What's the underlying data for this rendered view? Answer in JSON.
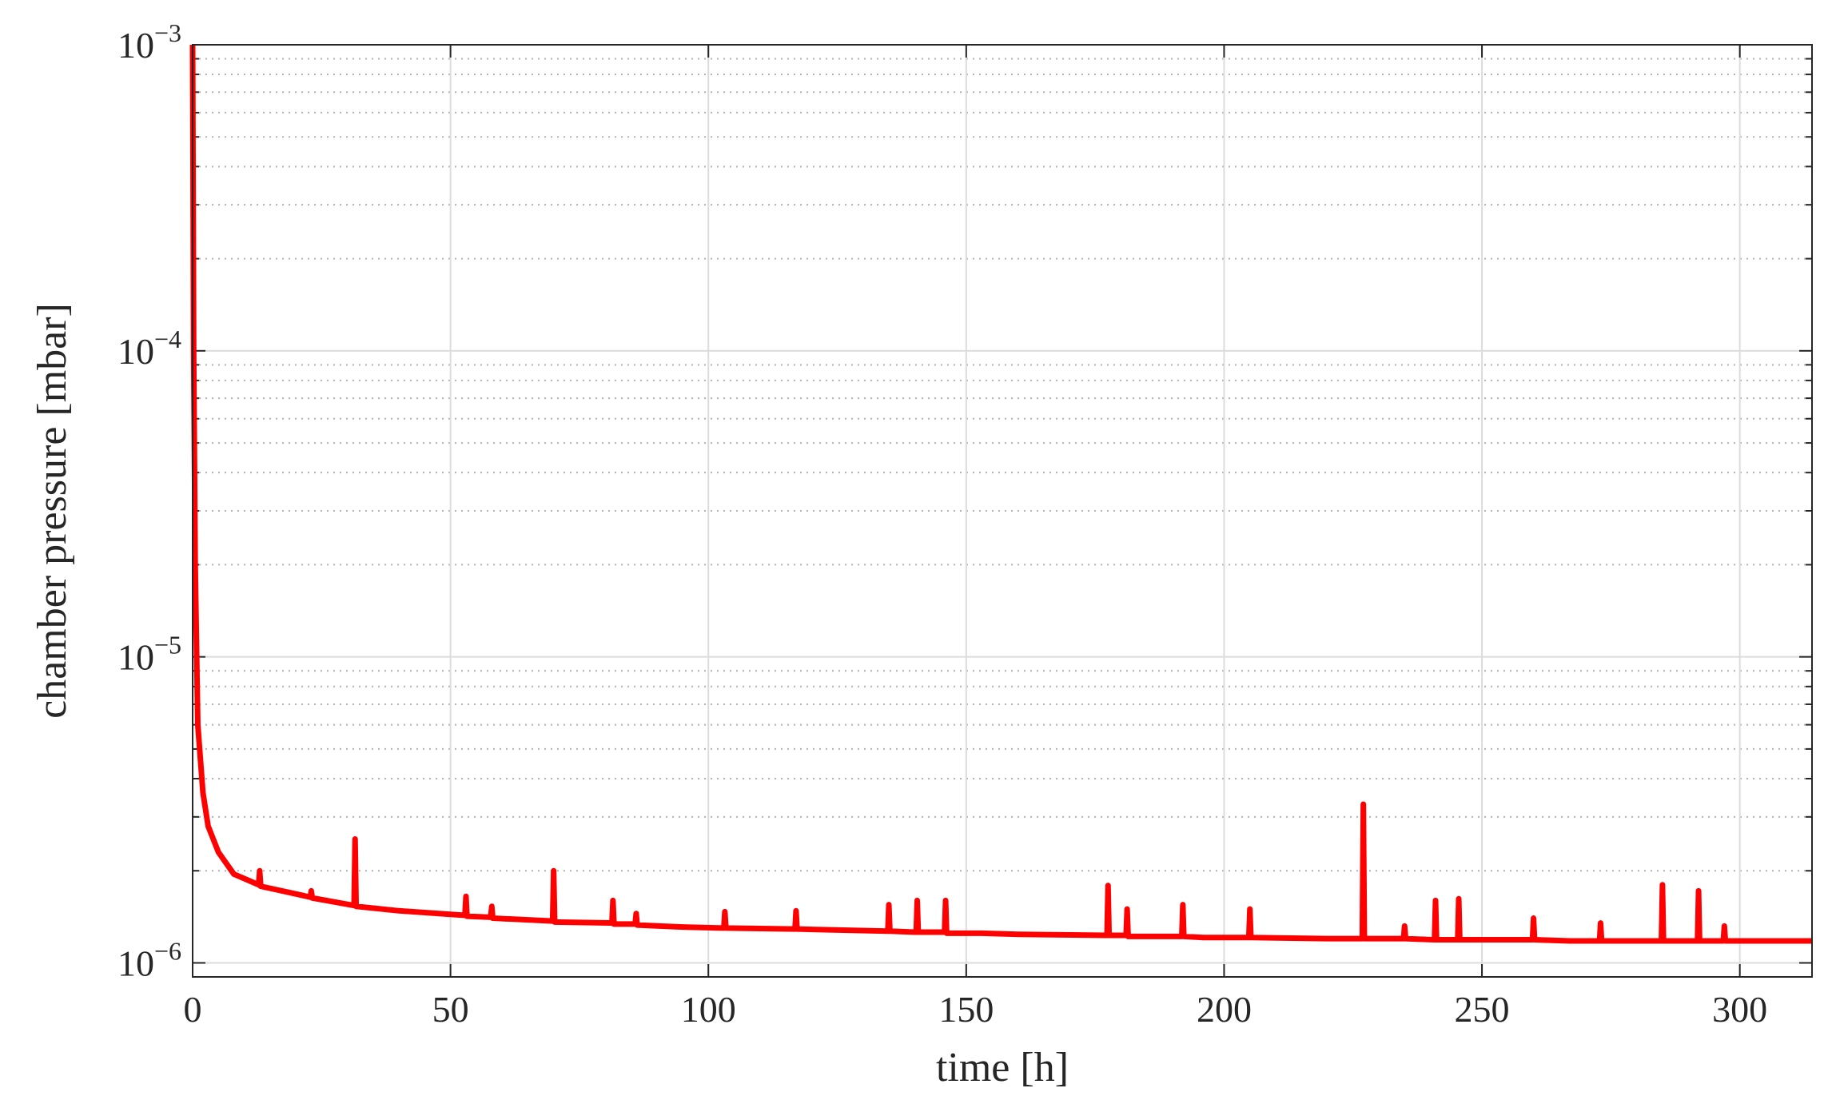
{
  "chart_data": {
    "type": "line",
    "x_label": "time [h]",
    "y_label": "chamber pressure [mbar]",
    "color": "#ff0000",
    "ylog": true,
    "grid": true,
    "minor_grid": true,
    "xlim": [
      0,
      314
    ],
    "ylim": [
      9e-07,
      0.001
    ],
    "xticks": [
      0,
      50,
      100,
      150,
      200,
      250,
      300
    ],
    "yticks": [
      {
        "value": 1e-06,
        "label": "10−6"
      },
      {
        "value": 1e-05,
        "label": "10−5"
      },
      {
        "value": 0.0001,
        "label": "10−4"
      },
      {
        "value": 0.001,
        "label": "10−3"
      }
    ],
    "x": [
      0,
      0.2,
      0.5,
      1,
      2,
      3,
      5,
      8,
      12.8,
      13,
      13.2,
      20,
      22.8,
      23,
      23.2,
      31.3,
      31.5,
      31.7,
      40,
      52.8,
      53,
      53.2,
      57.8,
      58,
      58.2,
      69.8,
      70,
      70.2,
      81.3,
      81.5,
      81.7,
      85.8,
      86,
      86.2,
      95,
      103,
      103.2,
      103.4,
      116.8,
      117,
      117.2,
      134.8,
      135,
      135.2,
      140.3,
      140.5,
      140.7,
      145.8,
      146,
      146.2,
      153,
      160,
      177.3,
      177.5,
      177.7,
      181,
      181.2,
      181.4,
      191.8,
      192,
      192.2,
      196,
      204.8,
      205,
      205.2,
      220,
      226.8,
      227,
      227.2,
      234.8,
      235,
      235.2,
      240.8,
      241,
      241.2,
      245.3,
      245.5,
      245.7,
      259.8,
      260,
      260.2,
      267,
      272.8,
      273,
      273.2,
      284.8,
      285,
      285.2,
      291.8,
      292,
      292.2,
      296.8,
      297,
      297.2,
      314
    ],
    "values": [
      0.001,
      0.0001,
      2e-05,
      6e-06,
      3.6e-06,
      2.8e-06,
      2.3e-06,
      1.95e-06,
      1.8e-06,
      2e-06,
      1.78e-06,
      1.68e-06,
      1.64e-06,
      1.72e-06,
      1.63e-06,
      1.54e-06,
      2.54e-06,
      1.53e-06,
      1.48e-06,
      1.43e-06,
      1.65e-06,
      1.42e-06,
      1.41e-06,
      1.53e-06,
      1.4e-06,
      1.37e-06,
      2e-06,
      1.36e-06,
      1.35e-06,
      1.6e-06,
      1.34e-06,
      1.34e-06,
      1.45e-06,
      1.33e-06,
      1.31e-06,
      1.3e-06,
      1.47e-06,
      1.3e-06,
      1.29e-06,
      1.48e-06,
      1.29e-06,
      1.27e-06,
      1.55e-06,
      1.27e-06,
      1.26e-06,
      1.6e-06,
      1.26e-06,
      1.26e-06,
      1.6e-06,
      1.25e-06,
      1.25e-06,
      1.24e-06,
      1.23e-06,
      1.79e-06,
      1.23e-06,
      1.23e-06,
      1.5e-06,
      1.22e-06,
      1.22e-06,
      1.55e-06,
      1.22e-06,
      1.21e-06,
      1.21e-06,
      1.5e-06,
      1.21e-06,
      1.2e-06,
      1.2e-06,
      3.3e-06,
      1.2e-06,
      1.2e-06,
      1.32e-06,
      1.2e-06,
      1.19e-06,
      1.6e-06,
      1.19e-06,
      1.19e-06,
      1.62e-06,
      1.19e-06,
      1.19e-06,
      1.4e-06,
      1.19e-06,
      1.18e-06,
      1.18e-06,
      1.35e-06,
      1.18e-06,
      1.18e-06,
      1.8e-06,
      1.18e-06,
      1.18e-06,
      1.72e-06,
      1.18e-06,
      1.18e-06,
      1.32e-06,
      1.18e-06,
      1.18e-06
    ]
  }
}
